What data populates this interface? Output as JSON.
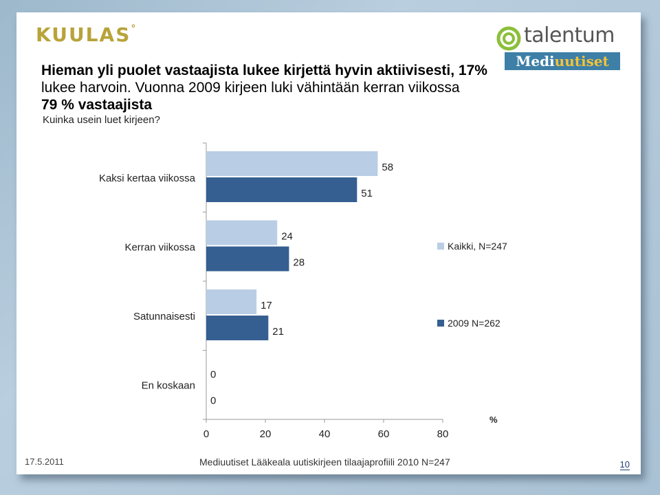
{
  "brand": {
    "logo": "KUULAS",
    "logo_mark": "°",
    "talentum": "talentum",
    "media_part1": "Medi",
    "media_part2": "uutiset"
  },
  "slide": {
    "title_bold_1": "Hieman yli puolet vastaajista lukee kirjettä hyvin aktiivisesti, 17%",
    "title_mixed_normal": "lukee harvoin.",
    "title_mixed_bold": " Vuonna 2009 kirjeen luki vähintään kerran viikossa",
    "title_bold_3": "79 % vastaajista",
    "subtitle": "Kuinka usein luet kirjeen?"
  },
  "chart_data": {
    "type": "bar",
    "orientation": "horizontal",
    "categories": [
      "Kaksi kertaa viikossa",
      "Kerran viikossa",
      "Satunnaisesti",
      "En koskaan"
    ],
    "series": [
      {
        "name": "Kaikki, N=247",
        "values": [
          58,
          24,
          17,
          0
        ],
        "color": "#b9cde5"
      },
      {
        "name": "2009 N=262",
        "values": [
          51,
          28,
          21,
          0
        ],
        "color": "#365f91"
      }
    ],
    "xlim": [
      0,
      80
    ],
    "xticks": [
      0,
      20,
      40,
      60,
      80
    ],
    "xlabel": "%",
    "legend_position": "right",
    "grid": false
  },
  "footer": {
    "date": "17.5.2011",
    "title": "Mediuutiset Lääkeala uutiskirjeen tilaajaprofiili 2010 N=247",
    "page": "10"
  }
}
